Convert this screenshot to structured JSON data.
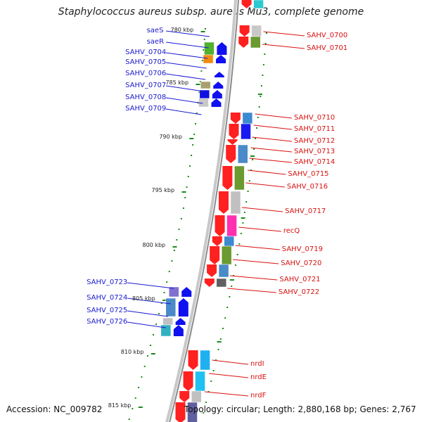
{
  "title": "Staphylococcus aureus subsp. aureus Mu3, complete genome",
  "accession": "Accession: NC_009782",
  "topology": "Topology: circular; Length: 2,880,168 bp; Genes: 2,767",
  "colors": {
    "forward_arrow": "#ff0000",
    "reverse_arrow": "#0000ee",
    "forward_label": "#d81010",
    "reverse_label": "#1a1ad0",
    "backbone": "#999999",
    "tick_mark": "#1a8a1a"
  },
  "ticks": [
    "780 kbp",
    "785 kbp",
    "790 kbp",
    "795 kbp",
    "800 kbp",
    "805 kbp",
    "810 kbp",
    "815 kbp"
  ],
  "genes_left": [
    "saeS",
    "saeR",
    "SAHV_0704",
    "SAHV_0705",
    "SAHV_0706",
    "SAHV_0707",
    "SAHV_0708",
    "SAHV_0709",
    "SAHV_0723",
    "SAHV_0724",
    "SAHV_0725",
    "SAHV_0726"
  ],
  "genes_right": [
    "SAHV_0700",
    "SAHV_0701",
    "SAHV_0710",
    "SAHV_0711",
    "SAHV_0712",
    "SAHV_0713",
    "SAHV_0714",
    "SAHV_0715",
    "SAHV_0716",
    "SAHV_0717",
    "recQ",
    "SAHV_0719",
    "SAHV_0720",
    "SAHV_0721",
    "SAHV_0722",
    "nrdI",
    "nrdE",
    "nrdF"
  ]
}
